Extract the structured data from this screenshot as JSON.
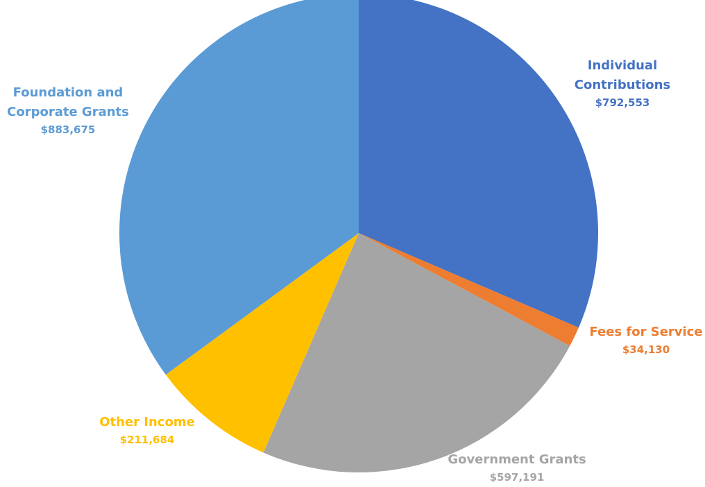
{
  "chart_data": {
    "type": "pie",
    "title": "",
    "series": [
      {
        "values": [
          {
            "category_lines": [
              "Individual",
              "Contributions"
            ],
            "value_label": "$792,553",
            "value": 792553,
            "color": "#4472C4"
          },
          {
            "category_lines": [
              "Fees for Service"
            ],
            "value_label": "$34,130",
            "value": 34130,
            "color": "#ED7D31"
          },
          {
            "category_lines": [
              "Government Grants"
            ],
            "value_label": "$597,191",
            "value": 597191,
            "color": "#A5A5A5"
          },
          {
            "category_lines": [
              "Other Income"
            ],
            "value_label": "$211,684",
            "value": 211684,
            "color": "#FFC000"
          },
          {
            "category_lines": [
              "Foundation and",
              "Corporate Grants"
            ],
            "value_label": "$883,675",
            "value": 883675,
            "color": "#5B9BD5"
          }
        ]
      }
    ],
    "start_angle": "12 o'clock",
    "direction": "clockwise",
    "legend": "none",
    "data_labels": "outside, colored by slice"
  }
}
